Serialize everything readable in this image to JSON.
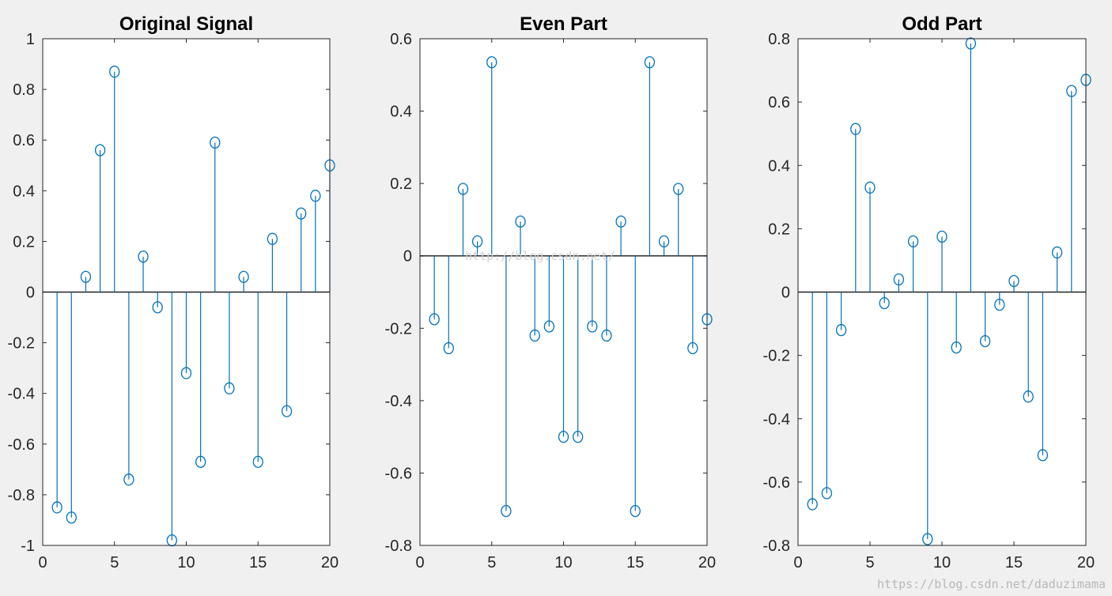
{
  "figure": {
    "background": "#f0f0f0",
    "axes_background": "#ffffff",
    "stem_color": "#0072bd",
    "baseline_color": "#000000",
    "watermarks": [
      "http://blog.csdn.net/",
      "https://blog.csdn.net/daduzimama"
    ]
  },
  "chart_data": [
    {
      "type": "stem",
      "title": "Original Signal",
      "xlim": [
        0,
        20
      ],
      "ylim": [
        -1,
        1
      ],
      "xticks": [
        0,
        5,
        10,
        15,
        20
      ],
      "yticks": [
        -1,
        -0.8,
        -0.6,
        -0.4,
        -0.2,
        0,
        0.2,
        0.4,
        0.6,
        0.8,
        1
      ],
      "x": [
        1,
        2,
        3,
        4,
        5,
        6,
        7,
        8,
        9,
        10,
        11,
        12,
        13,
        14,
        15,
        16,
        17,
        18,
        19,
        20
      ],
      "values": [
        -0.85,
        -0.89,
        0.06,
        0.56,
        0.87,
        -0.74,
        0.14,
        -0.06,
        -0.98,
        -0.32,
        -0.67,
        0.59,
        -0.38,
        0.06,
        -0.67,
        0.21,
        -0.47,
        0.31,
        0.38,
        0.5
      ]
    },
    {
      "type": "stem",
      "title": "Even Part",
      "xlim": [
        0,
        20
      ],
      "ylim": [
        -0.8,
        0.6
      ],
      "xticks": [
        0,
        5,
        10,
        15,
        20
      ],
      "yticks": [
        -0.8,
        -0.6,
        -0.4,
        -0.2,
        0,
        0.2,
        0.4,
        0.6
      ],
      "x": [
        1,
        2,
        3,
        4,
        5,
        6,
        7,
        8,
        9,
        10,
        11,
        12,
        13,
        14,
        15,
        16,
        17,
        18,
        19,
        20
      ],
      "values": [
        -0.175,
        -0.255,
        0.185,
        0.04,
        0.535,
        -0.705,
        0.095,
        -0.22,
        -0.195,
        -0.5,
        -0.5,
        -0.195,
        -0.22,
        0.095,
        -0.705,
        0.535,
        0.04,
        0.185,
        -0.255,
        -0.175
      ]
    },
    {
      "type": "stem",
      "title": "Odd Part",
      "xlim": [
        0,
        20
      ],
      "ylim": [
        -0.8,
        0.8
      ],
      "xticks": [
        0,
        5,
        10,
        15,
        20
      ],
      "yticks": [
        -0.8,
        -0.6,
        -0.4,
        -0.2,
        0,
        0.2,
        0.4,
        0.6,
        0.8
      ],
      "x": [
        1,
        2,
        3,
        4,
        5,
        6,
        7,
        8,
        9,
        10,
        11,
        12,
        13,
        14,
        15,
        16,
        17,
        18,
        19,
        20
      ],
      "values": [
        -0.67,
        -0.635,
        -0.12,
        0.515,
        0.33,
        -0.035,
        0.04,
        0.16,
        -0.78,
        0.175,
        -0.175,
        0.785,
        -0.155,
        -0.04,
        0.035,
        -0.33,
        -0.515,
        0.125,
        0.635,
        0.67
      ]
    }
  ]
}
